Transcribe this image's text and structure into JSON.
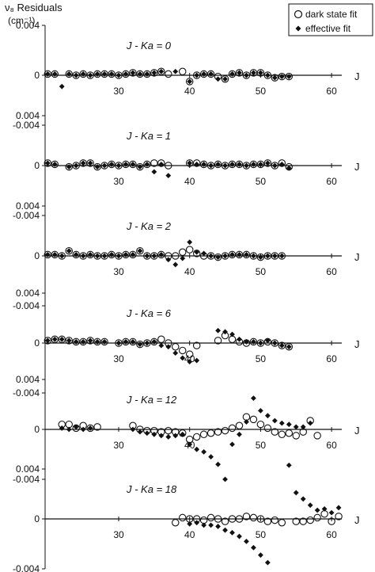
{
  "figure": {
    "ylabel_line1": "ν₈ Residuals",
    "ylabel_line2": "(cm⁻¹)",
    "legend": {
      "dark_label": "dark state fit",
      "effective_label": "effective fit"
    }
  },
  "chart_data": [
    {
      "type": "scatter",
      "panel_label": "J - Ka = 0",
      "x_axis_label": "J",
      "xlim": [
        20,
        62
      ],
      "ylim": [
        -0.004,
        0.004
      ],
      "y_ticks": [
        "0.004",
        "0",
        "-0.004"
      ],
      "x_ticks": [
        30,
        40,
        50,
        60
      ],
      "series": [
        {
          "name": "dark state fit",
          "x": [
            20,
            21,
            23,
            24,
            25,
            26,
            27,
            28,
            29,
            30,
            31,
            32,
            33,
            34,
            35,
            36,
            37,
            39,
            40,
            41,
            42,
            43,
            44,
            45,
            46,
            47,
            48,
            49,
            50,
            51,
            52,
            53,
            54
          ],
          "y": [
            0.0001,
            0.0001,
            0.0001,
            0.0,
            0.0001,
            0.0,
            0.0001,
            0.0001,
            0.0001,
            0.0,
            0.0001,
            0.0002,
            0.0001,
            0.0001,
            0.0002,
            0.0003,
            0.0001,
            0.0003,
            -0.0005,
            0.0,
            0.0001,
            0.0001,
            -0.0001,
            -0.0003,
            0.0001,
            0.0002,
            0.0,
            0.0002,
            0.0002,
            0.0,
            -0.0002,
            -0.0001,
            -0.0001
          ]
        },
        {
          "name": "effective fit",
          "x": [
            20,
            21,
            22,
            23,
            24,
            25,
            26,
            27,
            28,
            29,
            30,
            31,
            32,
            33,
            34,
            35,
            36,
            38,
            40,
            41,
            42,
            43,
            44,
            45,
            46,
            47,
            48,
            49,
            50,
            51,
            52,
            53,
            54
          ],
          "y": [
            0.0001,
            0.0001,
            -0.0009,
            0.0001,
            0.0,
            0.0001,
            0.0,
            0.0001,
            0.0001,
            0.0001,
            0.0,
            0.0001,
            0.0002,
            0.0001,
            0.0001,
            0.0002,
            0.0003,
            0.0003,
            -0.0005,
            0.0,
            0.0001,
            0.0001,
            -0.0003,
            -0.0003,
            0.0001,
            0.0002,
            0.0,
            0.0002,
            0.0002,
            0.0,
            -0.0002,
            -0.0001,
            -0.0001
          ]
        }
      ]
    },
    {
      "type": "scatter",
      "panel_label": "J - Ka = 1",
      "x_axis_label": "J",
      "xlim": [
        20,
        62
      ],
      "ylim": [
        -0.004,
        0.004
      ],
      "y_ticks": [
        "0.004",
        "0",
        "-0.004"
      ],
      "x_ticks": [
        30,
        40,
        50,
        60
      ],
      "series": [
        {
          "name": "dark state fit",
          "x": [
            20,
            21,
            23,
            24,
            25,
            26,
            27,
            28,
            29,
            30,
            31,
            32,
            33,
            34,
            35,
            36,
            37,
            40,
            41,
            42,
            43,
            44,
            45,
            46,
            47,
            48,
            49,
            50,
            51,
            52,
            53,
            54
          ],
          "y": [
            0.0002,
            0.0001,
            -0.0001,
            0.0,
            0.0002,
            0.0002,
            -0.0001,
            0.0,
            0.0001,
            0.0,
            0.0001,
            0.0001,
            -0.0001,
            0.0001,
            0.0002,
            0.0002,
            0.0,
            0.0002,
            0.0002,
            0.0001,
            0.0,
            0.0001,
            0.0,
            0.0001,
            0.0001,
            0.0,
            0.0001,
            0.0001,
            0.0002,
            0.0,
            0.0002,
            -0.0001
          ]
        },
        {
          "name": "effective fit",
          "x": [
            20,
            21,
            23,
            24,
            25,
            26,
            27,
            28,
            29,
            30,
            31,
            32,
            33,
            34,
            35,
            36,
            37,
            40,
            41,
            42,
            43,
            44,
            45,
            46,
            47,
            48,
            49,
            50,
            51,
            52,
            53,
            54
          ],
          "y": [
            0.0002,
            0.0001,
            -0.0001,
            0.0,
            0.0002,
            0.0002,
            -0.0001,
            0.0,
            0.0001,
            0.0,
            0.0001,
            0.0001,
            -0.0001,
            0.0001,
            -0.0005,
            0.0001,
            -0.0008,
            0.0002,
            0.0001,
            0.0001,
            0.0,
            0.0001,
            0.0,
            0.0001,
            0.0001,
            0.0,
            0.0001,
            0.0001,
            0.0002,
            0.0,
            0.0001,
            -0.0002
          ]
        }
      ]
    },
    {
      "type": "scatter",
      "panel_label": "J - Ka = 2",
      "x_axis_label": "J",
      "xlim": [
        20,
        62
      ],
      "ylim": [
        -0.004,
        0.004
      ],
      "y_ticks": [
        "0.004",
        "0",
        "-0.004"
      ],
      "x_ticks": [
        30,
        40,
        50,
        60
      ],
      "series": [
        {
          "name": "dark state fit",
          "x": [
            20,
            21,
            22,
            23,
            24,
            25,
            26,
            27,
            28,
            29,
            30,
            31,
            32,
            33,
            34,
            35,
            36,
            37,
            38,
            39,
            40,
            41,
            42,
            43,
            44,
            45,
            46,
            47,
            48,
            49,
            50,
            51,
            52,
            53
          ],
          "y": [
            0.0001,
            0.0001,
            0.0,
            0.0004,
            0.0001,
            0.0,
            0.0001,
            0.0,
            0.0,
            0.0001,
            0.0,
            0.0001,
            0.0001,
            0.0004,
            0.0,
            0.0,
            0.0001,
            0.0,
            0.0,
            0.0003,
            0.0005,
            0.0002,
            0.0,
            0.0,
            -0.0001,
            0.0,
            0.0001,
            0.0001,
            0.0001,
            0.0,
            -0.0001,
            0.0,
            0.0,
            0.0
          ]
        },
        {
          "name": "effective fit",
          "x": [
            20,
            21,
            22,
            23,
            24,
            25,
            26,
            27,
            28,
            29,
            30,
            31,
            32,
            33,
            34,
            35,
            36,
            37,
            38,
            39,
            40,
            41,
            42,
            43,
            44,
            45,
            46,
            47,
            48,
            49,
            50,
            51,
            52,
            53
          ],
          "y": [
            0.0001,
            0.0001,
            0.0,
            0.0004,
            0.0001,
            0.0,
            0.0001,
            0.0,
            0.0,
            0.0001,
            0.0,
            0.0001,
            0.0001,
            0.0004,
            0.0,
            0.0,
            0.0001,
            -0.0003,
            -0.0007,
            -0.0002,
            0.0011,
            0.0003,
            0.0002,
            0.0,
            -0.0001,
            0.0,
            0.0001,
            0.0001,
            0.0001,
            0.0,
            -0.0001,
            0.0,
            0.0,
            0.0
          ]
        }
      ]
    },
    {
      "type": "scatter",
      "panel_label": "J - Ka = 6",
      "x_axis_label": "J",
      "xlim": [
        20,
        62
      ],
      "ylim": [
        -0.004,
        0.004
      ],
      "y_ticks": [
        "0.004",
        "0",
        "-0.004"
      ],
      "x_ticks": [
        30,
        40,
        50,
        60
      ],
      "series": [
        {
          "name": "dark state fit",
          "x": [
            20,
            21,
            22,
            23,
            24,
            25,
            26,
            27,
            28,
            30,
            31,
            32,
            33,
            34,
            35,
            36,
            37,
            38,
            39,
            40,
            41,
            44,
            45,
            46,
            47,
            48,
            49,
            50,
            51,
            52,
            53,
            54
          ],
          "y": [
            0.0002,
            0.0003,
            0.0003,
            0.0002,
            0.0001,
            0.0001,
            0.0002,
            0.0001,
            0.0001,
            0.0,
            0.0001,
            0.0001,
            -0.0001,
            0.0,
            0.0001,
            0.0003,
            0.0,
            -0.0003,
            -0.0006,
            -0.0009,
            -0.0002,
            0.0002,
            0.0006,
            0.0003,
            0.0001,
            0.0,
            0.0001,
            0.0,
            0.0001,
            0.0,
            -0.0002,
            -0.0003
          ]
        },
        {
          "name": "effective fit",
          "x": [
            20,
            21,
            22,
            23,
            24,
            25,
            26,
            27,
            28,
            30,
            31,
            32,
            33,
            34,
            35,
            36,
            37,
            38,
            39,
            40,
            41,
            44,
            45,
            46,
            47,
            48,
            49,
            50,
            51,
            52,
            53,
            54
          ],
          "y": [
            0.0002,
            0.0003,
            0.0003,
            0.0002,
            0.0001,
            0.0001,
            0.0002,
            0.0001,
            0.0001,
            0.0,
            0.0001,
            0.0001,
            -0.0001,
            0.0,
            0.0001,
            -0.0002,
            -0.0003,
            -0.0008,
            -0.0012,
            -0.0015,
            -0.0014,
            0.001,
            0.0009,
            0.0007,
            0.0003,
            0.0001,
            0.0001,
            0.0,
            0.0002,
            0.0,
            -0.0002,
            -0.0003
          ]
        }
      ]
    },
    {
      "type": "scatter",
      "panel_label": "J - Ka = 12",
      "x_axis_label": "J",
      "xlim": [
        20,
        62
      ],
      "ylim": [
        -0.004,
        0.004
      ],
      "y_ticks": [
        "0.004",
        "0",
        "-0.004"
      ],
      "x_ticks": [
        30,
        40,
        50,
        60
      ],
      "series": [
        {
          "name": "dark state fit",
          "x": [
            22,
            23,
            24,
            25,
            26,
            27,
            32,
            33,
            34,
            35,
            36,
            37,
            38,
            39,
            40,
            41,
            42,
            43,
            44,
            45,
            46,
            47,
            48,
            49,
            50,
            51,
            52,
            53,
            54,
            55,
            56,
            57,
            58
          ],
          "y": [
            0.0004,
            0.0004,
            0.0001,
            0.0003,
            0.0001,
            0.0002,
            0.0003,
            0.0,
            -0.0001,
            -0.0001,
            -0.0002,
            -0.0001,
            -0.0002,
            -0.0003,
            -0.0008,
            -0.0006,
            -0.0004,
            -0.0003,
            -0.0002,
            -0.0001,
            0.0001,
            0.0003,
            0.001,
            0.0008,
            0.0004,
            0.0001,
            -0.0002,
            -0.0004,
            -0.0003,
            -0.0005,
            -0.0002,
            0.0007,
            -0.0005
          ]
        },
        {
          "name": "effective fit",
          "x": [
            22,
            23,
            24,
            25,
            26,
            32,
            33,
            34,
            35,
            36,
            37,
            38,
            39,
            40,
            41,
            42,
            43,
            44,
            45,
            46,
            47,
            48,
            49,
            50,
            51,
            52,
            53,
            54,
            55,
            56,
            57
          ],
          "y": [
            0.0001,
            0.0,
            0.0002,
            0.0,
            0.0001,
            0.0,
            -0.0002,
            -0.0003,
            -0.0004,
            -0.0005,
            -0.0006,
            -0.0005,
            -0.0004,
            -0.0012,
            -0.0016,
            -0.0018,
            -0.0022,
            -0.0028,
            -0.004,
            -0.0012,
            -0.0004,
            0.0006,
            0.0025,
            0.0015,
            0.0011,
            0.0007,
            0.0005,
            0.0004,
            0.0002,
            0.0002,
            0.0005
          ]
        }
      ]
    },
    {
      "type": "scatter",
      "panel_label": "J - Ka = 18",
      "x_axis_label": "J",
      "xlim": [
        20,
        62
      ],
      "ylim": [
        -0.004,
        0.004
      ],
      "y_ticks": [
        "0.004",
        "0",
        "-0.004"
      ],
      "x_ticks": [
        30,
        40,
        50,
        60
      ],
      "series": [
        {
          "name": "dark state fit",
          "x": [
            38,
            39,
            40,
            41,
            42,
            43,
            44,
            45,
            46,
            47,
            48,
            49,
            50,
            51,
            52,
            53,
            55,
            56,
            57,
            58,
            59,
            60,
            61
          ],
          "y": [
            -0.0003,
            0.0001,
            0.0,
            0.0,
            -0.0001,
            0.0001,
            0.0,
            -0.0002,
            0.0,
            0.0,
            0.0002,
            0.0001,
            0.0,
            -0.0002,
            -0.0001,
            -0.0003,
            -0.0002,
            -0.0002,
            -0.0001,
            0.0001,
            0.0004,
            -0.0002,
            0.0002
          ]
        },
        {
          "name": "effective fit",
          "x": [
            40,
            41,
            42,
            43,
            44,
            45,
            46,
            47,
            48,
            49,
            50,
            51,
            52,
            54,
            55,
            56,
            57,
            58,
            59,
            60,
            61
          ],
          "y": [
            -0.0004,
            -0.0003,
            -0.0005,
            -0.0005,
            -0.0006,
            -0.0009,
            -0.0011,
            -0.0014,
            -0.0018,
            -0.0023,
            -0.0029,
            -0.0035,
            -0.0048,
            0.0043,
            0.0021,
            0.0016,
            0.0011,
            0.0007,
            0.0008,
            0.0005,
            0.0009
          ]
        }
      ]
    }
  ]
}
